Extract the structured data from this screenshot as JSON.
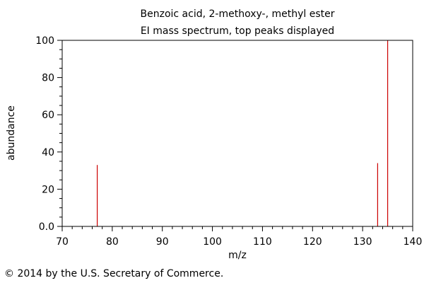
{
  "chart_data": {
    "type": "bar",
    "title": "Benzoic acid, 2-methoxy-, methyl ester",
    "subtitle": "EI mass spectrum, top peaks displayed",
    "xlabel": "m/z",
    "ylabel": "abundance",
    "xlim": [
      70,
      140
    ],
    "ylim": [
      0,
      100
    ],
    "x_ticks": [
      "70",
      "80",
      "90",
      "100",
      "110",
      "120",
      "130",
      "140"
    ],
    "y_ticks": [
      "0.0",
      "20",
      "40",
      "60",
      "80",
      "100"
    ],
    "grid": false,
    "series": [
      {
        "x": [
          77,
          133,
          135
        ],
        "values": [
          33,
          34,
          100
        ]
      }
    ],
    "colors": {
      "peak": "#cc0000",
      "axis": "#000000"
    }
  },
  "footer": {
    "copyright": "© 2014 by the U.S. Secretary of Commerce."
  }
}
